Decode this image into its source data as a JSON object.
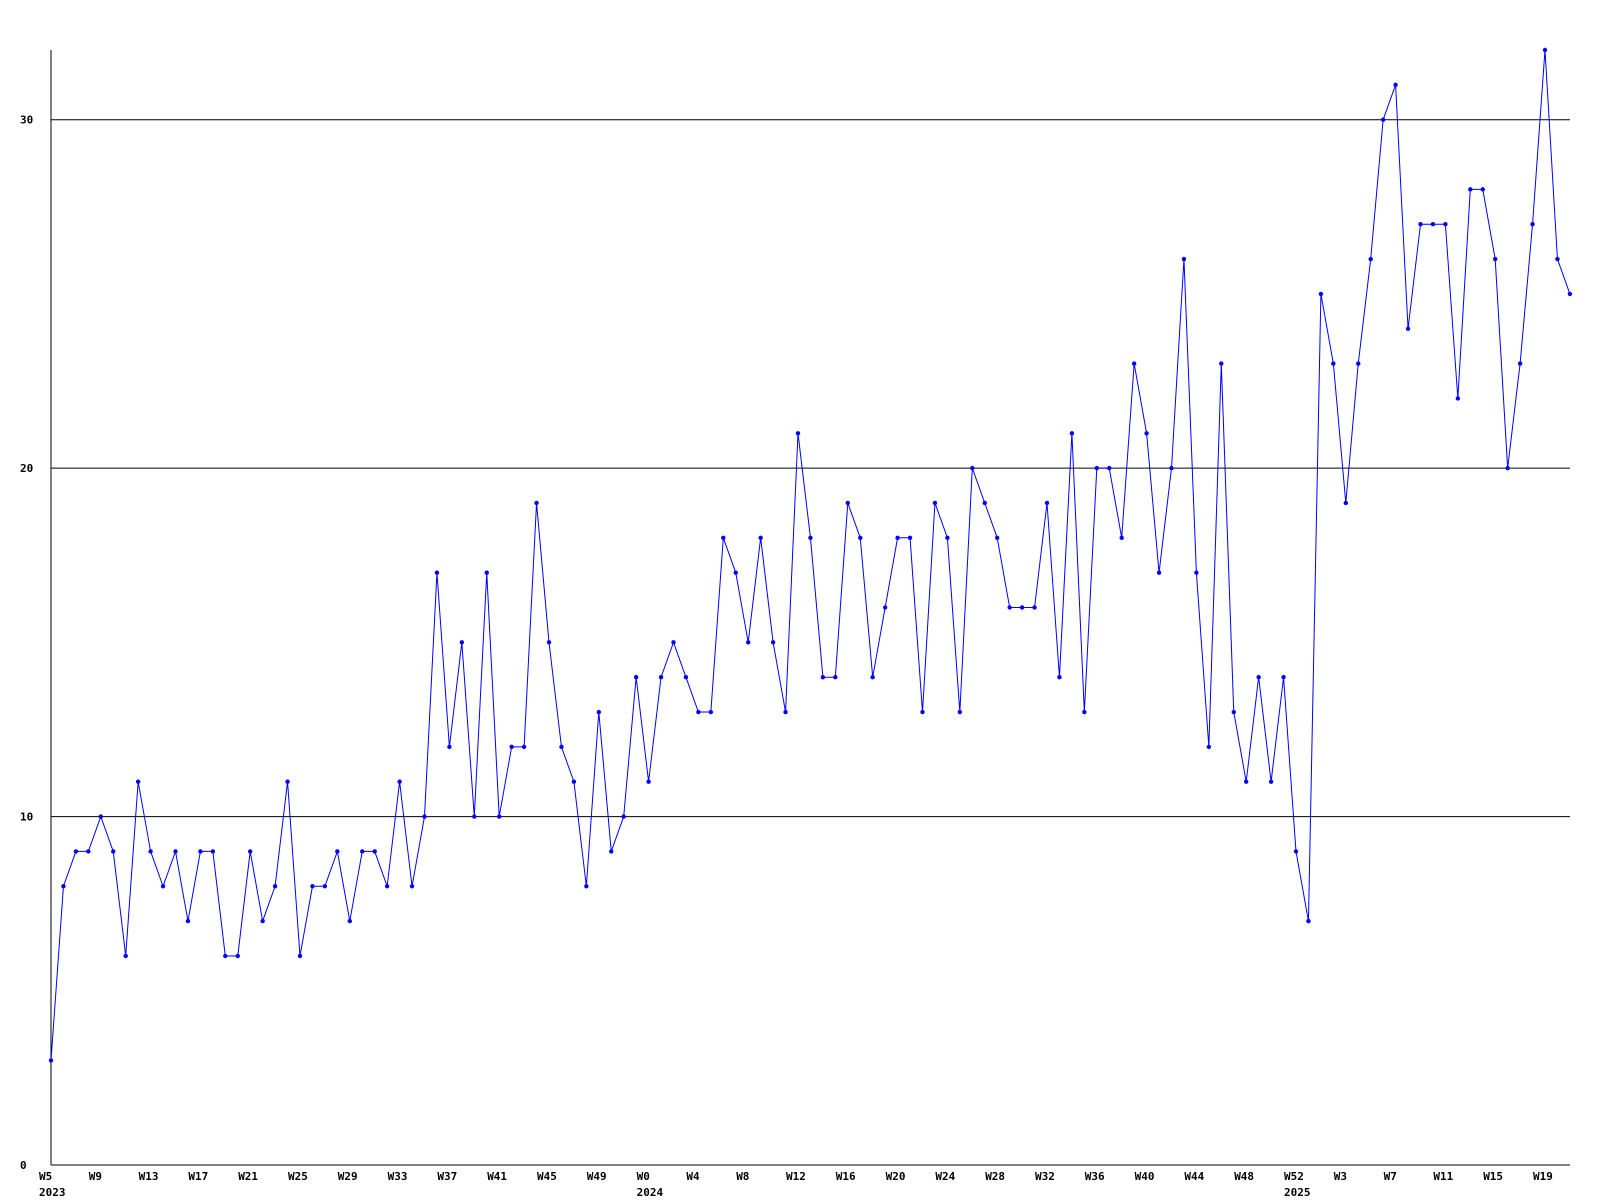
{
  "chart_data": {
    "type": "line",
    "title": "",
    "xlabel": "",
    "ylabel": "",
    "ylim": [
      0,
      32
    ],
    "y_ticks": [
      0,
      10,
      20,
      30
    ],
    "grid": "horizontal",
    "x_tick_labels": [
      "W5",
      "W9",
      "W13",
      "W17",
      "W21",
      "W25",
      "W29",
      "W33",
      "W37",
      "W41",
      "W45",
      "W49",
      "W0",
      "W4",
      "W8",
      "W12",
      "W16",
      "W20",
      "W24",
      "W28",
      "W32",
      "W36",
      "W40",
      "W44",
      "W48",
      "W52",
      "W3",
      "W7",
      "W11",
      "W15",
      "W19"
    ],
    "year_labels": [
      "2023",
      "2024",
      "2025"
    ],
    "line_color": "#0000ff",
    "series": [
      {
        "values": [
          3,
          8,
          9,
          9,
          10,
          9,
          6,
          11,
          9,
          8,
          9,
          7,
          9,
          9,
          6,
          6,
          9,
          7,
          8,
          11,
          6,
          8,
          8,
          9,
          7,
          9,
          9,
          8,
          11,
          8,
          10,
          17,
          12,
          15,
          10,
          17,
          10,
          12,
          12,
          19,
          15,
          12,
          11,
          8,
          13,
          9,
          10,
          14,
          11,
          14,
          15,
          14,
          13,
          13,
          18,
          17,
          15,
          18,
          15,
          13,
          21,
          18,
          14,
          14,
          19,
          18,
          14,
          16,
          18,
          18,
          13,
          19,
          18,
          13,
          20,
          19,
          18,
          16,
          16,
          16,
          19,
          14,
          21,
          13,
          20,
          20,
          18,
          23,
          21,
          17,
          20,
          26,
          17,
          12,
          23,
          13,
          11,
          14,
          11,
          14,
          9,
          7,
          25,
          23,
          19,
          23,
          26,
          30,
          31,
          24,
          27,
          27,
          27,
          22,
          28,
          28,
          26,
          20,
          23,
          27,
          32,
          26,
          25
        ]
      }
    ]
  }
}
